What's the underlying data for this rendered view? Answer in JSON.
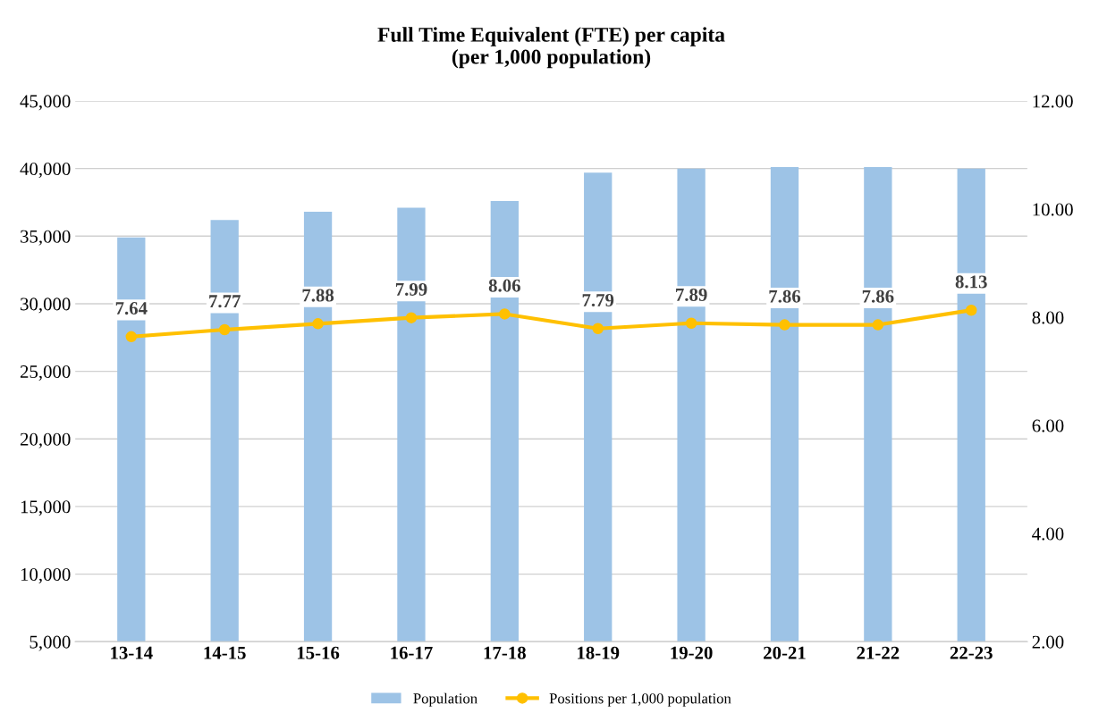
{
  "chart_data": {
    "type": "bar",
    "title": "Full Time Equivalent (FTE) per capita\n(per 1,000 population)",
    "categories": [
      "13-14",
      "14-15",
      "15-16",
      "16-17",
      "17-18",
      "18-19",
      "19-20",
      "20-21",
      "21-22",
      "22-23"
    ],
    "series": [
      {
        "name": "Population",
        "color": "#9dc3e6",
        "values": [
          34900,
          36200,
          36800,
          37100,
          37600,
          39700,
          40000,
          40100,
          40100,
          40000
        ]
      },
      {
        "name": "Positions per 1,000 population",
        "type": "line",
        "axis": "y2",
        "color": "#ffc000",
        "marker": "circle",
        "data_labels": true,
        "values": [
          7.64,
          7.77,
          7.88,
          7.99,
          8.06,
          7.79,
          7.89,
          7.86,
          7.86,
          8.13
        ]
      }
    ],
    "ylim": [
      5000,
      45000
    ],
    "yticks": [
      {
        "value": 5000,
        "label": "5,000"
      },
      {
        "value": 10000,
        "label": "10,000"
      },
      {
        "value": 15000,
        "label": "15,000"
      },
      {
        "value": 20000,
        "label": "20,000"
      },
      {
        "value": 25000,
        "label": "25,000"
      },
      {
        "value": 30000,
        "label": "30,000"
      },
      {
        "value": 35000,
        "label": "35,000"
      },
      {
        "value": 40000,
        "label": "40,000"
      },
      {
        "value": 45000,
        "label": "45,000"
      }
    ],
    "y2lim": [
      2,
      12
    ],
    "y2ticks": [
      {
        "value": 2,
        "label": "2.00"
      },
      {
        "value": 4,
        "label": "4.00"
      },
      {
        "value": 6,
        "label": "6.00"
      },
      {
        "value": 8,
        "label": "8.00"
      },
      {
        "value": 10,
        "label": "10.00"
      },
      {
        "value": 12,
        "label": "12.00"
      }
    ],
    "grid": "y",
    "legend": "bottom"
  }
}
